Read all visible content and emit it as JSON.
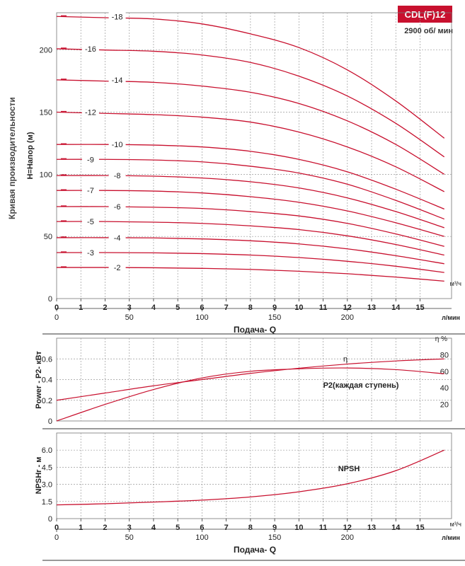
{
  "model_badge": "CDL(F)12",
  "speed_label": "2900 об/ мин",
  "vertical_title": "Кривая производительности",
  "chart_data": [
    {
      "type": "line",
      "name_id": "head",
      "ylabel": "H=Напор (м)",
      "xlabel": "Подача- Q",
      "x_unit_top": "м³/ч",
      "x_unit_bottom": "л/мин",
      "xlim": [
        0,
        16.3
      ],
      "ylim": [
        0,
        230
      ],
      "x_ticks": [
        0,
        1,
        2,
        3,
        4,
        5,
        6,
        7,
        8,
        9,
        10,
        11,
        12,
        13,
        14,
        15
      ],
      "x_ticks_lpm": [
        0,
        50,
        100,
        150,
        200
      ],
      "y_ticks": [
        0,
        50,
        100,
        150,
        200
      ],
      "series": [
        {
          "name": "-2",
          "x": [
            0,
            2,
            4,
            6,
            8,
            10,
            12,
            14,
            16
          ],
          "y": [
            25,
            25,
            24.8,
            24.3,
            23.5,
            22,
            20,
            17.3,
            14
          ]
        },
        {
          "name": "-3",
          "x": [
            0,
            2,
            4,
            6,
            8,
            10,
            12,
            14,
            16
          ],
          "y": [
            37,
            37,
            36.8,
            36.2,
            35,
            33,
            30,
            26,
            21
          ]
        },
        {
          "name": "-4",
          "x": [
            0,
            2,
            4,
            6,
            8,
            10,
            12,
            14,
            16
          ],
          "y": [
            49,
            49,
            48.8,
            48,
            46.5,
            44,
            40,
            34.5,
            28
          ]
        },
        {
          "name": "-5",
          "x": [
            0,
            2,
            4,
            6,
            8,
            10,
            12,
            14,
            16
          ],
          "y": [
            62,
            62,
            61.5,
            60.5,
            58.5,
            55.5,
            50.5,
            43.5,
            35
          ]
        },
        {
          "name": "-6",
          "x": [
            0,
            2,
            4,
            6,
            8,
            10,
            12,
            14,
            16
          ],
          "y": [
            74,
            74,
            73.5,
            72.5,
            70,
            66.5,
            60.5,
            52,
            42
          ]
        },
        {
          "name": "-7",
          "x": [
            0,
            2,
            4,
            6,
            8,
            10,
            12,
            14,
            16
          ],
          "y": [
            87,
            87,
            86.5,
            85,
            82,
            77.5,
            70.5,
            61,
            50
          ]
        },
        {
          "name": "-8",
          "x": [
            0,
            2,
            4,
            6,
            8,
            10,
            12,
            14,
            16
          ],
          "y": [
            99,
            99,
            98.5,
            97,
            94,
            89,
            81,
            70,
            57
          ]
        },
        {
          "name": "-9",
          "x": [
            0,
            2,
            4,
            6,
            8,
            10,
            12,
            14,
            16
          ],
          "y": [
            112,
            112,
            111.5,
            110,
            106.5,
            101,
            92,
            79,
            64
          ]
        },
        {
          "name": "-10",
          "x": [
            0,
            2,
            4,
            6,
            8,
            10,
            12,
            14,
            16
          ],
          "y": [
            124,
            124,
            123.5,
            122,
            118.5,
            112,
            102,
            88,
            72
          ]
        },
        {
          "name": "-12",
          "x": [
            0,
            2,
            4,
            6,
            8,
            10,
            12,
            14,
            16
          ],
          "y": [
            150,
            149,
            148,
            146,
            142,
            134,
            122,
            106,
            86
          ]
        },
        {
          "name": "-14",
          "x": [
            0,
            2,
            4,
            6,
            8,
            10,
            12,
            14,
            16
          ],
          "y": [
            176,
            175,
            174,
            171,
            166,
            157,
            143,
            124,
            100
          ]
        },
        {
          "name": "-16",
          "x": [
            0,
            2,
            4,
            6,
            8,
            10,
            12,
            14,
            16
          ],
          "y": [
            201,
            200,
            199,
            196,
            190,
            179,
            163,
            141,
            114
          ]
        },
        {
          "name": "-18",
          "x": [
            0,
            2,
            4,
            6,
            8,
            10,
            12,
            14,
            16
          ],
          "y": [
            227,
            226,
            225,
            221,
            213,
            202,
            184,
            159,
            129
          ]
        }
      ]
    },
    {
      "type": "line",
      "name_id": "power",
      "ylabel": "Power - P2- кВт",
      "y2label": "η %",
      "ylim": [
        0,
        0.8
      ],
      "y_ticks": [
        0,
        0.2,
        0.4,
        0.6
      ],
      "y2lim": [
        0,
        100
      ],
      "y2_ticks": [
        20,
        40,
        60,
        80
      ],
      "series": [
        {
          "name": "η",
          "axis": "y2",
          "x": [
            0,
            2,
            4,
            6,
            8,
            10,
            12,
            14,
            16
          ],
          "y": [
            0,
            20,
            38,
            52,
            60,
            63,
            64,
            62,
            57
          ]
        },
        {
          "name": "P2(каждая ступень)",
          "axis": "y",
          "x": [
            0,
            2,
            4,
            6,
            8,
            10,
            12,
            14,
            16
          ],
          "y": [
            0.2,
            0.27,
            0.34,
            0.4,
            0.46,
            0.51,
            0.55,
            0.58,
            0.6
          ]
        }
      ]
    },
    {
      "type": "line",
      "name_id": "npsh",
      "ylabel": "NPSHr - м",
      "xlabel": "Подача- Q",
      "x_unit_top": "м³/ч",
      "x_unit_bottom": "л/мин",
      "ylim": [
        0,
        7.5
      ],
      "y_ticks": [
        0,
        1.5,
        3.0,
        4.5,
        6.0
      ],
      "y_tick_labels": [
        "0",
        "1.5",
        "3.0",
        "4.5",
        "6.0"
      ],
      "series": [
        {
          "name": "NPSH",
          "x": [
            0,
            2,
            4,
            6,
            8,
            10,
            12,
            14,
            16
          ],
          "y": [
            1.2,
            1.3,
            1.45,
            1.62,
            1.9,
            2.35,
            3.05,
            4.2,
            6.0
          ]
        }
      ]
    }
  ]
}
